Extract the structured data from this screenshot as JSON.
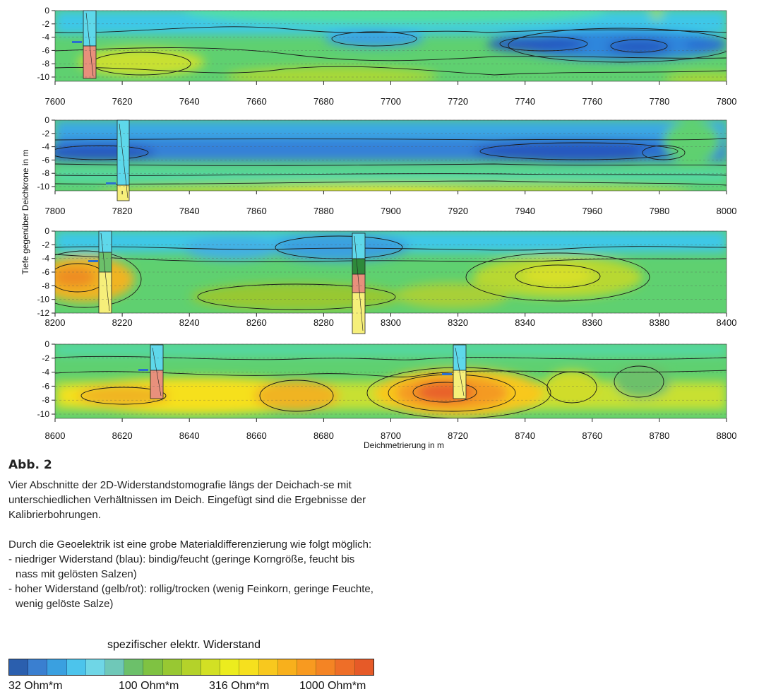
{
  "figure": {
    "y_axis_label": "Tiefe gegenüber Deichkrone in m",
    "x_axis_label": "Deichmetrierung in m",
    "panels": [
      {
        "x_ticks": [
          "7600",
          "7620",
          "7640",
          "7660",
          "7680",
          "7700",
          "7720",
          "7740",
          "7760",
          "7780",
          "7800"
        ],
        "y_ticks": [
          "0",
          "-2",
          "-4",
          "-6",
          "-8",
          "-10"
        ]
      },
      {
        "x_ticks": [
          "7800",
          "7820",
          "7840",
          "7860",
          "7880",
          "7900",
          "7920",
          "7940",
          "7960",
          "7980",
          "8000"
        ],
        "y_ticks": [
          "0",
          "-2",
          "-4",
          "-6",
          "-8",
          "-10"
        ]
      },
      {
        "x_ticks": [
          "8200",
          "8220",
          "8240",
          "8260",
          "8280",
          "8300",
          "8320",
          "8340",
          "8360",
          "8380",
          "8400"
        ],
        "y_ticks": [
          "0",
          "-2",
          "-4",
          "-6",
          "-8",
          "-10",
          "-12"
        ]
      },
      {
        "x_ticks": [
          "8600",
          "8620",
          "8640",
          "8660",
          "8680",
          "8700",
          "8720",
          "8740",
          "8760",
          "8780",
          "8800"
        ],
        "y_ticks": [
          "0",
          "-2",
          "-4",
          "-6",
          "-8",
          "-10"
        ]
      }
    ]
  },
  "caption": {
    "label": "Abb. 2",
    "para1": "Vier Abschnitte der 2D-Widerstandstomografie längs der Deichach-se mit unterschiedlichen Verhältnissen im Deich. Eingefügt sind die Ergebnisse der Kalibrierbohrungen.",
    "para2": "Durch die Geoelektrik ist eine grobe Materialdifferenzierung wie folgt möglich:",
    "bullet1": "- niedriger Widerstand (blau): bindig/feucht (geringe Korngröße, feucht bis nass mit gelösten Salzen)",
    "bullet2": "- hoher Widerstand (gelb/rot): rollig/trocken (wenig Feinkorn, geringe Feuchte, wenig gelöste Salze)"
  },
  "legend": {
    "title": "spezifischer elektr. Widerstand",
    "labels": [
      "32 Ohm*m",
      "100 Ohm*m",
      "316 Ohm*m",
      "1000 Ohm*m"
    ],
    "colors": [
      "#2b5fae",
      "#3a7fd0",
      "#3aa0e0",
      "#4cc4ec",
      "#6fd6e6",
      "#6fc8b8",
      "#6cc06a",
      "#7fc242",
      "#98c832",
      "#b4d22a",
      "#d2e024",
      "#ecec1e",
      "#f6e01e",
      "#f8c81e",
      "#f8b01c",
      "#f89a20",
      "#f48424",
      "#ee6e28",
      "#e65a28"
    ]
  }
}
